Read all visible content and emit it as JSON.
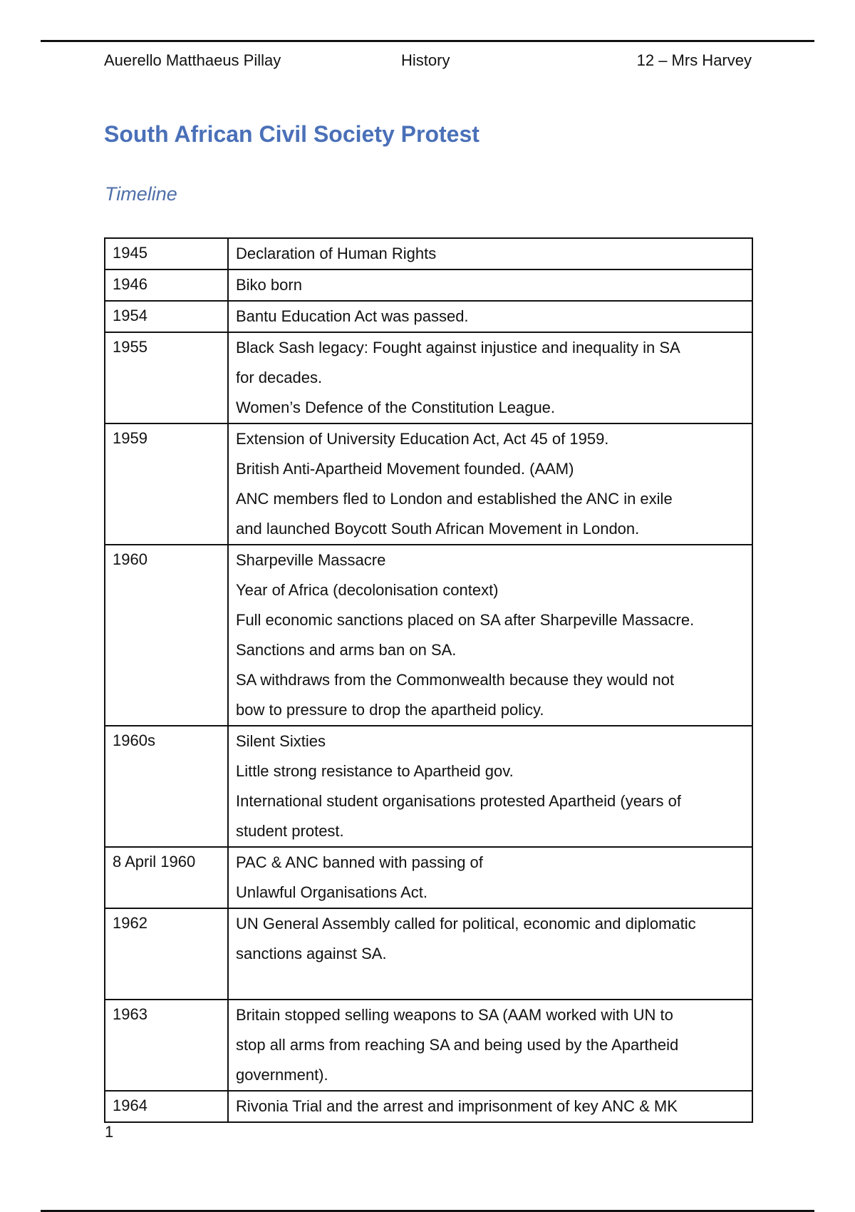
{
  "header": {
    "author": "Auerello Matthaeus Pillay",
    "subject": "History",
    "class": "12 – Mrs Harvey"
  },
  "title": "South African Civil Society Protest",
  "subtitle": "Timeline",
  "timeline": [
    {
      "year": "1945",
      "lines": [
        "Declaration of Human Rights"
      ]
    },
    {
      "year": "1946",
      "lines": [
        "Biko born"
      ]
    },
    {
      "year": "1954",
      "lines": [
        "Bantu Education Act was passed."
      ]
    },
    {
      "year": "1955",
      "lines": [
        "Black Sash legacy: Fought against injustice and inequality in SA",
        "for decades.",
        "Women’s Defence of the Constitution League."
      ]
    },
    {
      "year": "1959",
      "lines": [
        "Extension of University Education Act, Act 45 of 1959.",
        "British Anti-Apartheid Movement founded. (AAM)",
        "ANC members fled to London and established the ANC in exile",
        "and launched Boycott South African Movement in London."
      ]
    },
    {
      "year": "1960",
      "lines": [
        "Sharpeville Massacre",
        "Year of Africa (decolonisation context)",
        "Full economic sanctions placed on SA after Sharpeville Massacre.",
        "Sanctions and arms ban on SA.",
        "SA withdraws from the Commonwealth because they would not",
        "bow to pressure to drop the apartheid policy."
      ]
    },
    {
      "year": "1960s",
      "lines": [
        "Silent Sixties",
        "Little strong resistance to Apartheid gov.",
        "International student organisations protested Apartheid (years of",
        "student protest."
      ]
    },
    {
      "year": "8 April 1960",
      "lines": [
        "PAC & ANC banned with passing of",
        "Unlawful Organisations Act."
      ]
    },
    {
      "year": "1962",
      "lines": [
        "UN General Assembly called for political, economic and diplomatic",
        "sanctions against SA.",
        ""
      ]
    },
    {
      "year": "1963",
      "lines": [
        "Britain stopped selling weapons to SA (AAM worked with UN to",
        "stop all arms from reaching SA and being used by the Apartheid",
        "government)."
      ]
    },
    {
      "year": "1964",
      "lines": [
        "Rivonia Trial and the arrest and imprisonment of key ANC & MK"
      ]
    }
  ],
  "page_number": "1"
}
